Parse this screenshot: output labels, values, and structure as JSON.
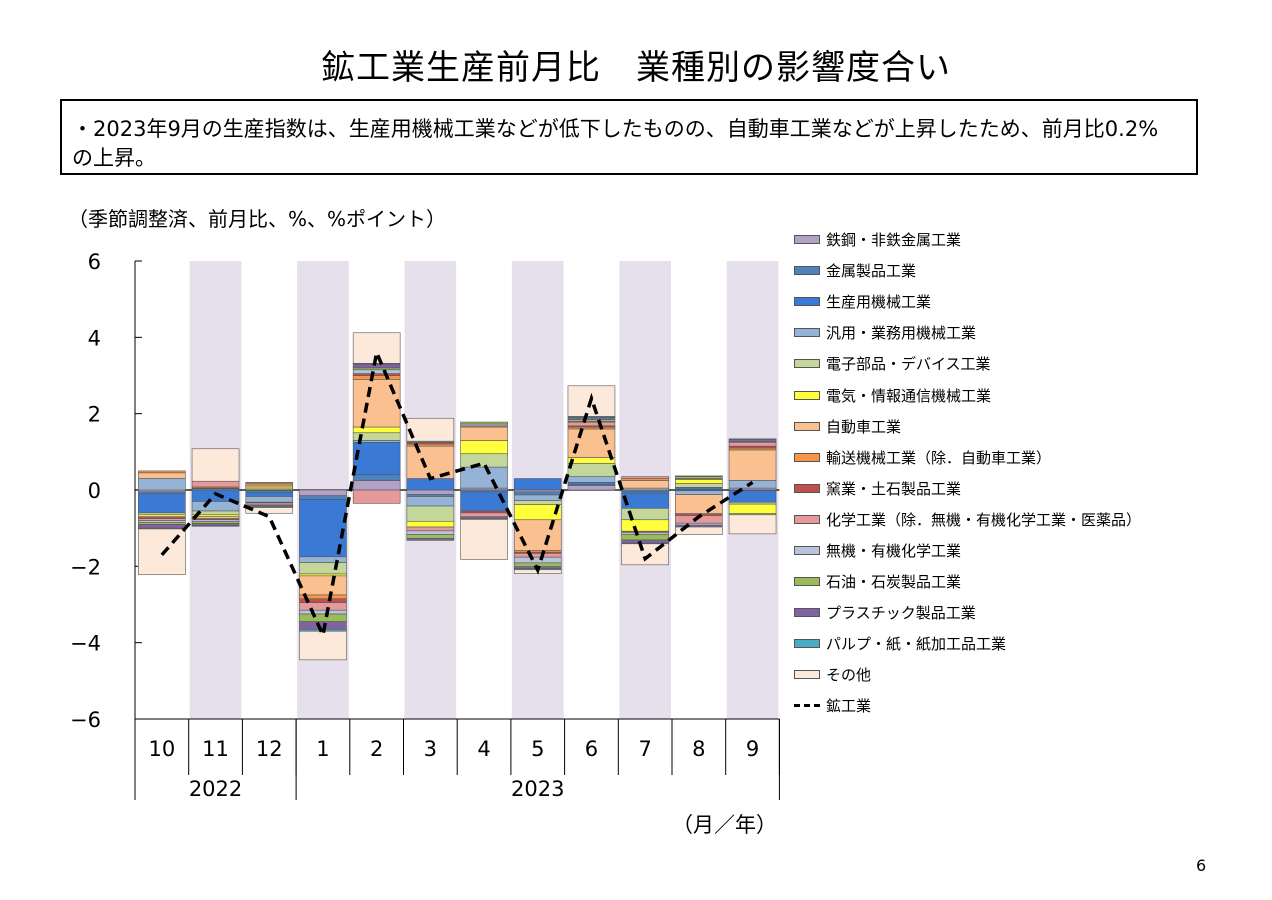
{
  "page": {
    "title": "鉱工業生産前月比　業種別の影響度合い",
    "summary": "・2023年9月の生産指数は、生産用機械工業などが低下したものの、自動車工業などが上昇したため、前月比0.2%の上昇。",
    "unit_label": "（季節調整済、前月比、%、%ポイント）",
    "x_unit_label": "（月／年）",
    "page_number": "6"
  },
  "chart_data": {
    "type": "bar",
    "stacked": true,
    "categories": [
      "10",
      "11",
      "12",
      "1",
      "2",
      "3",
      "4",
      "5",
      "6",
      "7",
      "8",
      "9"
    ],
    "year_labels": [
      {
        "label": "2022",
        "from": 0,
        "to": 2
      },
      {
        "label": "2023",
        "from": 3,
        "to": 11
      }
    ],
    "ylim": [
      -6,
      6
    ],
    "yticks": [
      6,
      4,
      2,
      0,
      -2,
      -4,
      -6
    ],
    "ytick_labels": [
      "6",
      "4",
      "2",
      "0",
      "−2",
      "−4",
      "−6"
    ],
    "shaded_categories": [
      1,
      3,
      5,
      7,
      9,
      11
    ],
    "shade_color": "#e5e0ec",
    "series": [
      {
        "name": "鉄鋼・非鉄金属工業",
        "color": "#b3a2c7",
        "values": [
          -0.05,
          0.03,
          -0.02,
          -0.15,
          0.25,
          -0.12,
          0.05,
          -0.05,
          0.12,
          -0.03,
          0.02,
          0.05
        ]
      },
      {
        "name": "金属製品工業",
        "color": "#4f81bd",
        "values": [
          -0.05,
          0.02,
          -0.05,
          -0.1,
          0.15,
          -0.05,
          -0.05,
          -0.08,
          0.03,
          -0.05,
          -0.02,
          -0.02
        ]
      },
      {
        "name": "生産用機械工業",
        "color": "#3a7ad4",
        "values": [
          -0.5,
          -0.3,
          -0.1,
          -1.5,
          0.85,
          0.3,
          -0.5,
          0.3,
          0.05,
          -0.4,
          0.05,
          -0.3
        ]
      },
      {
        "name": "汎用・業務用機械工業",
        "color": "#95b3d7",
        "values": [
          0.3,
          -0.25,
          -0.15,
          -0.15,
          0.05,
          -0.25,
          0.55,
          -0.15,
          0.15,
          0.05,
          -0.1,
          0.2
        ]
      },
      {
        "name": "電子部品・デバイス工業",
        "color": "#c4d79b",
        "values": [
          -0.05,
          -0.1,
          0.03,
          -0.3,
          0.2,
          -0.4,
          0.35,
          -0.1,
          0.35,
          -0.3,
          0.1,
          -0.05
        ]
      },
      {
        "name": "電気・情報通信機械工業",
        "color": "#ffff3c",
        "values": [
          -0.05,
          -0.05,
          0.05,
          -0.05,
          0.15,
          -0.15,
          0.35,
          -0.4,
          0.15,
          -0.3,
          0.1,
          -0.25
        ]
      },
      {
        "name": "自動車工業",
        "color": "#fac090",
        "values": [
          0.15,
          -0.05,
          0.05,
          -0.5,
          1.25,
          0.85,
          0.35,
          -0.8,
          0.75,
          0.2,
          -0.5,
          0.8
        ]
      },
      {
        "name": "輸送機械工業（除．自動車工業）",
        "color": "#f79646",
        "values": [
          0.05,
          0.03,
          0.05,
          -0.1,
          0.1,
          0.05,
          0.03,
          -0.05,
          0.05,
          0.05,
          0.03,
          0.05
        ]
      },
      {
        "name": "窯業・土石製品工業",
        "color": "#c0504d",
        "values": [
          -0.05,
          -0.03,
          -0.02,
          -0.1,
          0.05,
          0.05,
          -0.05,
          -0.03,
          0.03,
          -0.03,
          -0.05,
          0.05
        ]
      },
      {
        "name": "化学工業（除．無機・有機化学工業・医薬品）",
        "color": "#e6999a",
        "values": [
          -0.05,
          0.15,
          -0.05,
          -0.2,
          -0.35,
          -0.1,
          -0.1,
          -0.1,
          0.1,
          0.05,
          -0.2,
          0.1
        ]
      },
      {
        "name": "無機・有機化学工業",
        "color": "#b9c3db",
        "values": [
          -0.05,
          -0.05,
          -0.02,
          -0.1,
          0.1,
          -0.1,
          0.05,
          -0.15,
          0.02,
          -0.05,
          -0.05,
          0.02
        ]
      },
      {
        "name": "石油・石炭製品工業",
        "color": "#9bbb59",
        "values": [
          -0.05,
          -0.05,
          0.02,
          -0.2,
          0.05,
          -0.1,
          0.05,
          -0.1,
          0.05,
          -0.15,
          0.05,
          -0.03
        ]
      },
      {
        "name": "プラスチック製品工業",
        "color": "#8064a2",
        "values": [
          -0.1,
          -0.05,
          -0.02,
          -0.2,
          0.1,
          -0.05,
          -0.05,
          -0.05,
          0.05,
          -0.08,
          -0.05,
          0.05
        ]
      },
      {
        "name": "パルプ・紙・紙加工品工業",
        "color": "#4bacc6",
        "values": [
          -0.02,
          -0.02,
          -0.03,
          -0.05,
          0.02,
          0.03,
          -0.02,
          -0.03,
          0.03,
          -0.02,
          0.02,
          0.02
        ]
      },
      {
        "name": "その他",
        "color": "#fde9d9",
        "values": [
          -1.2,
          0.85,
          -0.15,
          -0.75,
          0.8,
          0.6,
          -1.05,
          -0.1,
          0.8,
          -0.55,
          -0.2,
          -0.5
        ]
      }
    ],
    "line_series": {
      "name": "鉱工業",
      "color": "#000000",
      "style": "dashed",
      "values": [
        -1.7,
        -0.1,
        -0.7,
        -3.8,
        3.6,
        0.3,
        0.7,
        -2.1,
        2.4,
        -1.8,
        -0.7,
        0.2
      ]
    }
  }
}
